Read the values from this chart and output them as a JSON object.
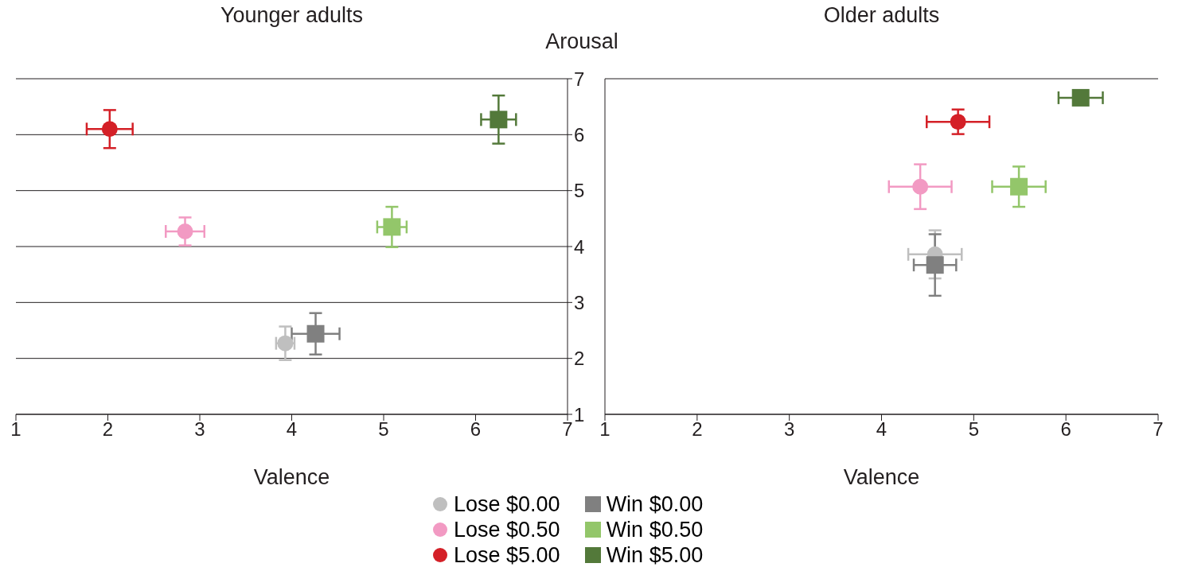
{
  "chart_data": [
    {
      "type": "scatter",
      "title": "Younger adults",
      "xlabel": "Valence",
      "ylabel": "Arousal",
      "xlim": [
        1,
        7
      ],
      "xticks": [
        1,
        2,
        3,
        4,
        5,
        6,
        7
      ],
      "ylim": [
        1,
        7
      ],
      "yticks": [
        1,
        2,
        3,
        4,
        5,
        6,
        7
      ],
      "grid": "y",
      "legend": "bottom",
      "series": [
        {
          "name": "Lose $0.00",
          "color": "#bfbfbf",
          "marker": "circle",
          "x": [
            3.93
          ],
          "values": [
            2.27
          ],
          "errors": [
            0.3
          ],
          "xerrors": [
            0.1
          ]
        },
        {
          "name": "Lose $0.50",
          "color": "#f29ac3",
          "marker": "circle",
          "x": [
            2.84
          ],
          "values": [
            4.27
          ],
          "errors": [
            0.25
          ],
          "xerrors": [
            0.21
          ]
        },
        {
          "name": "Lose $5.00",
          "color": "#d42027",
          "marker": "circle",
          "x": [
            2.02
          ],
          "values": [
            6.1
          ],
          "errors": [
            0.34
          ],
          "xerrors": [
            0.25
          ]
        },
        {
          "name": "Win $0.00",
          "color": "#808080",
          "marker": "square",
          "x": [
            4.26
          ],
          "values": [
            2.44
          ],
          "errors": [
            0.37
          ],
          "xerrors": [
            0.26
          ]
        },
        {
          "name": "Win $0.50",
          "color": "#93c66a",
          "marker": "square",
          "x": [
            5.09
          ],
          "values": [
            4.35
          ],
          "errors": [
            0.36
          ],
          "xerrors": [
            0.16
          ]
        },
        {
          "name": "Win $5.00",
          "color": "#53793a",
          "marker": "square",
          "x": [
            6.25
          ],
          "values": [
            6.27
          ],
          "errors": [
            0.43
          ],
          "xerrors": [
            0.19
          ]
        }
      ]
    },
    {
      "type": "scatter",
      "title": "Older adults",
      "xlabel": "Valence",
      "xlim": [
        1,
        7
      ],
      "xticks": [
        1,
        2,
        3,
        4,
        5,
        6,
        7
      ],
      "ylim": [
        1,
        7
      ],
      "yticks": [
        1,
        2,
        3,
        4,
        5,
        6,
        7
      ],
      "grid": "y",
      "tick_labels": "x",
      "series": [
        {
          "color": "#bfbfbf",
          "marker": "circle",
          "x": [
            4.58
          ],
          "values": [
            3.86
          ],
          "errors": [
            0.43
          ],
          "xerrors": [
            0.29
          ]
        },
        {
          "color": "#f29ac3",
          "marker": "circle",
          "x": [
            4.42
          ],
          "values": [
            5.07
          ],
          "errors": [
            0.4
          ],
          "xerrors": [
            0.34
          ]
        },
        {
          "color": "#d42027",
          "marker": "circle",
          "x": [
            4.83
          ],
          "values": [
            6.23
          ],
          "errors": [
            0.22
          ],
          "xerrors": [
            0.34
          ]
        },
        {
          "color": "#808080",
          "marker": "square",
          "x": [
            4.58
          ],
          "values": [
            3.67
          ],
          "errors": [
            0.55
          ],
          "xerrors": [
            0.23
          ]
        },
        {
          "color": "#93c66a",
          "marker": "square",
          "x": [
            5.49
          ],
          "values": [
            5.07
          ],
          "errors": [
            0.36
          ],
          "xerrors": [
            0.29
          ]
        },
        {
          "color": "#53793a",
          "marker": "square",
          "x": [
            6.16
          ],
          "values": [
            6.66
          ],
          "xerrors": [
            0.24
          ]
        }
      ]
    }
  ]
}
